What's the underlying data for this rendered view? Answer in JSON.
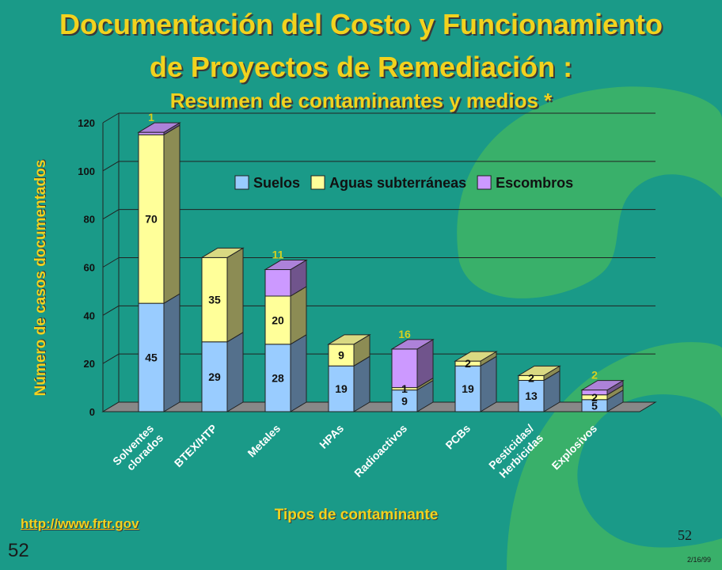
{
  "slide": {
    "title_line1": "Documentación del Costo y Funcionamiento",
    "title_line2": "de Proyectos de Remediación :",
    "subtitle": "Resumen de contaminantes y medios *",
    "url": "http://www.frtr.gov",
    "slide_number_left": "52",
    "slide_number_right": "52",
    "date": "2/16/99"
  },
  "colors": {
    "background": "#1a9a88",
    "decor": "#39b06a",
    "title": "#f2d21e"
  },
  "chart_data": {
    "type": "bar",
    "stacked": true,
    "three_d": true,
    "xlabel": "Tipos de contaminante",
    "ylabel": "Número de casos documentados",
    "ylim": [
      0,
      120
    ],
    "yticks": [
      0,
      20,
      40,
      60,
      80,
      100,
      120
    ],
    "grid": true,
    "legend_position": "top-right",
    "categories": [
      [
        "Solventes",
        "clorados"
      ],
      [
        "BTEX/HTP"
      ],
      [
        "Metales"
      ],
      [
        "HPAs"
      ],
      [
        "Radioactivos"
      ],
      [
        "PCBs"
      ],
      [
        "Pesticidas/",
        "Herbicidas"
      ],
      [
        "Explosivos"
      ]
    ],
    "series": [
      {
        "name": "Suelos",
        "color": "#99ccff",
        "values": [
          45,
          29,
          28,
          19,
          9,
          19,
          13,
          5
        ]
      },
      {
        "name": "Aguas subterráneas",
        "color": "#ffff99",
        "values": [
          70,
          35,
          20,
          9,
          1,
          2,
          2,
          2
        ]
      },
      {
        "name": "Escombros",
        "color": "#cc99ff",
        "values": [
          1,
          0,
          11,
          0,
          16,
          0,
          0,
          2
        ]
      }
    ]
  }
}
